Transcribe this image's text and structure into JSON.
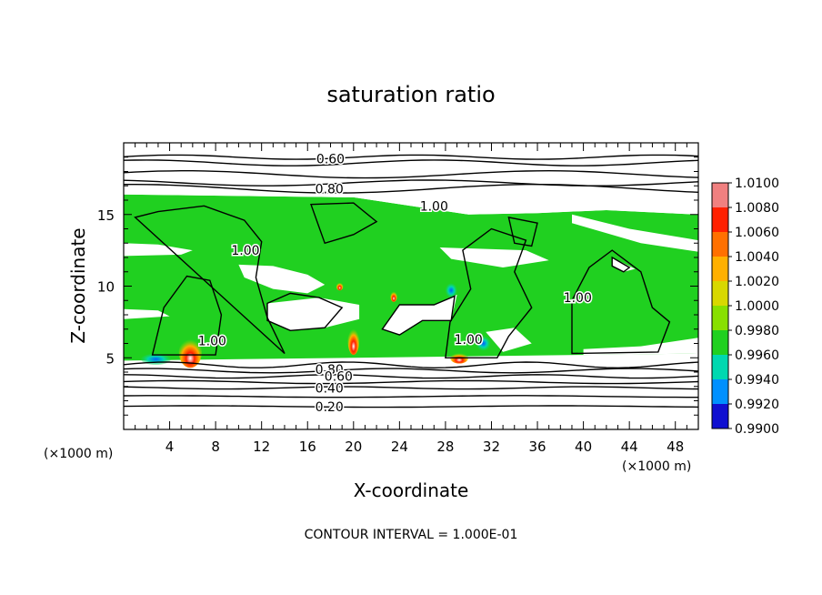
{
  "chart_data": {
    "type": "heatmap",
    "title": "saturation ratio",
    "xlabel": "X-coordinate",
    "ylabel": "Z-coordinate",
    "x_unit_left": "(×1000 m)",
    "x_unit_right": "(×1000 m)",
    "footer": "CONTOUR INTERVAL = 1.000E-01",
    "xlim": [
      0,
      50
    ],
    "ylim": [
      0,
      20
    ],
    "x_ticks": [
      4,
      8,
      12,
      16,
      20,
      24,
      28,
      32,
      36,
      40,
      44,
      48
    ],
    "y_ticks": [
      5,
      10,
      15
    ],
    "colorbar": {
      "levels": [
        "1.0100",
        "1.0080",
        "1.0060",
        "1.0040",
        "1.0020",
        "1.0000",
        "0.9980",
        "0.9960",
        "0.9940",
        "0.9920",
        "0.9900"
      ],
      "colors": [
        "#f08080",
        "#ff2000",
        "#ff7000",
        "#ffb000",
        "#d8d800",
        "#88e000",
        "#20d020",
        "#00d8b0",
        "#0090ff",
        "#1010d0",
        "#3a007a"
      ]
    },
    "contour_labels": [
      {
        "text": "0.60",
        "x": 18.0,
        "z": 18.9
      },
      {
        "text": "0.80",
        "x": 17.9,
        "z": 16.8
      },
      {
        "text": "1.00",
        "x": 27.0,
        "z": 15.6
      },
      {
        "text": "1.00",
        "x": 10.6,
        "z": 12.5
      },
      {
        "text": "1.00",
        "x": 7.7,
        "z": 6.2
      },
      {
        "text": "1.00",
        "x": 30.0,
        "z": 6.3
      },
      {
        "text": "1.00",
        "x": 39.5,
        "z": 9.2
      },
      {
        "text": "0.80",
        "x": 17.9,
        "z": 4.2
      },
      {
        "text": "0.60",
        "x": 18.7,
        "z": 3.7
      },
      {
        "text": "0.40",
        "x": 17.9,
        "z": 2.9
      },
      {
        "text": "0.20",
        "x": 17.9,
        "z": 1.6
      }
    ],
    "field_regions": [
      {
        "kind": "white",
        "pts": [
          [
            0,
            17.4
          ],
          [
            10,
            17.8
          ],
          [
            17,
            17.0
          ],
          [
            22,
            17.1
          ],
          [
            30,
            18.0
          ],
          [
            38,
            17.8
          ],
          [
            45,
            17.5
          ],
          [
            50,
            17.6
          ],
          [
            50,
            15.0
          ],
          [
            42,
            15.3
          ],
          [
            36,
            15.1
          ],
          [
            30,
            15.0
          ],
          [
            20,
            16.2
          ],
          [
            0,
            16.4
          ]
        ]
      },
      {
        "kind": "white",
        "pts": [
          [
            39,
            15.0
          ],
          [
            44,
            14.0
          ],
          [
            50,
            13.2
          ],
          [
            50,
            12.4
          ],
          [
            45,
            13.0
          ],
          [
            39,
            14.4
          ]
        ]
      },
      {
        "kind": "white",
        "pts": [
          [
            0,
            13.0
          ],
          [
            3,
            12.9
          ],
          [
            6,
            12.5
          ],
          [
            5,
            12.2
          ],
          [
            0,
            12.1
          ]
        ]
      },
      {
        "kind": "white",
        "pts": [
          [
            10,
            11.5
          ],
          [
            13,
            11.4
          ],
          [
            16,
            10.8
          ],
          [
            17.5,
            10.1
          ],
          [
            16,
            9.5
          ],
          [
            13,
            9.8
          ],
          [
            10.5,
            10.6
          ]
        ]
      },
      {
        "kind": "white",
        "pts": [
          [
            27.5,
            12.7
          ],
          [
            35,
            12.5
          ],
          [
            37,
            11.8
          ],
          [
            33,
            11.3
          ],
          [
            28.5,
            11.9
          ]
        ]
      },
      {
        "kind": "white",
        "pts": [
          [
            0,
            8.4
          ],
          [
            3,
            8.3
          ],
          [
            4,
            7.9
          ],
          [
            0,
            7.7
          ]
        ]
      },
      {
        "kind": "white",
        "pts": [
          [
            12.5,
            8.8
          ],
          [
            17,
            9.2
          ],
          [
            20.5,
            8.7
          ],
          [
            20.5,
            7.7
          ],
          [
            17.5,
            7.1
          ],
          [
            14.5,
            6.9
          ],
          [
            12.5,
            7.6
          ]
        ]
      },
      {
        "kind": "white",
        "pts": [
          [
            22.5,
            7.0
          ],
          [
            24,
            8.7
          ],
          [
            27,
            8.7
          ],
          [
            29,
            9.4
          ],
          [
            28.5,
            7.6
          ],
          [
            26,
            7.6
          ],
          [
            24,
            6.6
          ]
        ]
      },
      {
        "kind": "white",
        "pts": [
          [
            31.5,
            6.8
          ],
          [
            34,
            7.1
          ],
          [
            35.5,
            6.0
          ],
          [
            33,
            5.4
          ]
        ]
      },
      {
        "kind": "white",
        "pts": [
          [
            40,
            5.6
          ],
          [
            45,
            5.8
          ],
          [
            50,
            6.4
          ],
          [
            50,
            5.3
          ],
          [
            40,
            5.2
          ]
        ]
      },
      {
        "kind": "white",
        "pts": [
          [
            42.5,
            12.0
          ],
          [
            43.5,
            11.6
          ],
          [
            44.5,
            11.2
          ],
          [
            43.5,
            11.0
          ],
          [
            42.5,
            11.4
          ]
        ]
      },
      {
        "kind": "red",
        "cx": 5.8,
        "cz": 5.4,
        "rx": 1.0,
        "rz": 1.1
      },
      {
        "kind": "red",
        "cx": 20.0,
        "cz": 6.2,
        "rx": 0.5,
        "rz": 1.0
      },
      {
        "kind": "red",
        "cx": 29.2,
        "cz": 5.0,
        "rx": 0.8,
        "rz": 0.4
      },
      {
        "kind": "red",
        "cx": 23.5,
        "cz": 9.3,
        "rx": 0.3,
        "rz": 0.4
      },
      {
        "kind": "red",
        "cx": 18.8,
        "cz": 10.0,
        "rx": 0.3,
        "rz": 0.3
      },
      {
        "kind": "cyan",
        "cx": 2.8,
        "cz": 4.9,
        "rx": 1.3,
        "rz": 0.4
      },
      {
        "kind": "cyan",
        "cx": 31.3,
        "cz": 6.0,
        "rx": 0.6,
        "rz": 0.5
      },
      {
        "kind": "cyan",
        "cx": 28.5,
        "cz": 9.7,
        "rx": 0.5,
        "rz": 0.5
      }
    ]
  }
}
